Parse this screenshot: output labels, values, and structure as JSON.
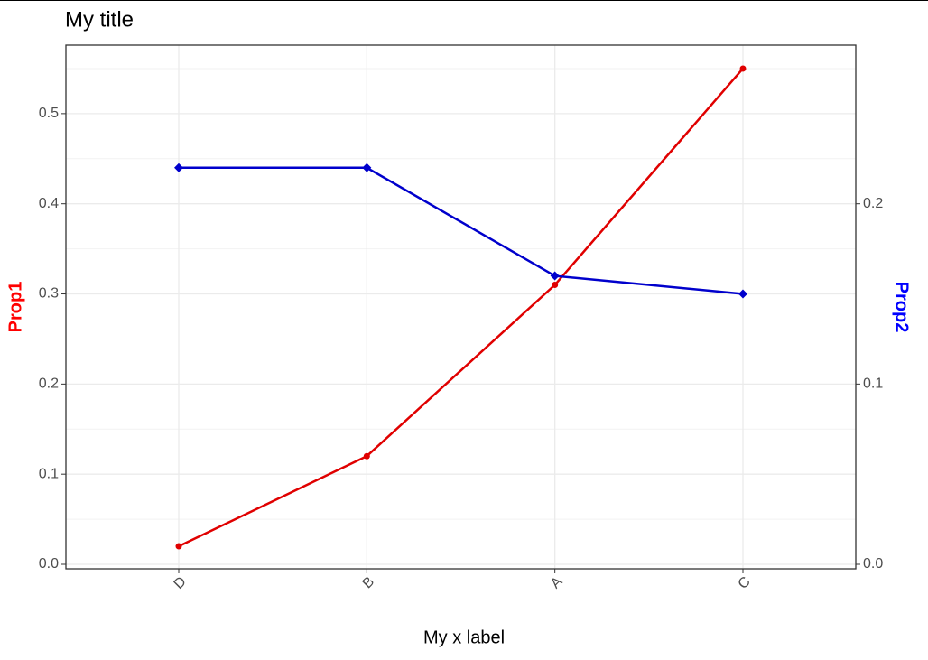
{
  "chart_data": {
    "type": "line",
    "title": "My title",
    "x_label": "My x label",
    "y_label": "Prop1",
    "y2_label": "Prop2",
    "categories": [
      "D",
      "B",
      "A",
      "C"
    ],
    "series": [
      {
        "name": "Prop1",
        "color": "#e00000",
        "marker": "circle",
        "values": [
          0.02,
          0.12,
          0.31,
          0.55
        ]
      },
      {
        "name": "Prop2",
        "color": "#0000cc",
        "marker": "diamond",
        "axis": "y2",
        "values": [
          0.22,
          0.22,
          0.16,
          0.15
        ]
      }
    ],
    "ylim": [
      -0.005,
      0.576
    ],
    "yticks": [
      {
        "value": 0,
        "label": "0.0"
      },
      0.1,
      0.2,
      0.3,
      0.4,
      0.5
    ],
    "minor_yticks": [
      0.05,
      0.15,
      0.25,
      0.35,
      0.45,
      0.55
    ],
    "y2lim": [
      -0.0025,
      0.288
    ],
    "y2ticks": [
      {
        "value": 0,
        "label": "0.0"
      },
      0.1,
      0.2
    ],
    "grid": true
  }
}
